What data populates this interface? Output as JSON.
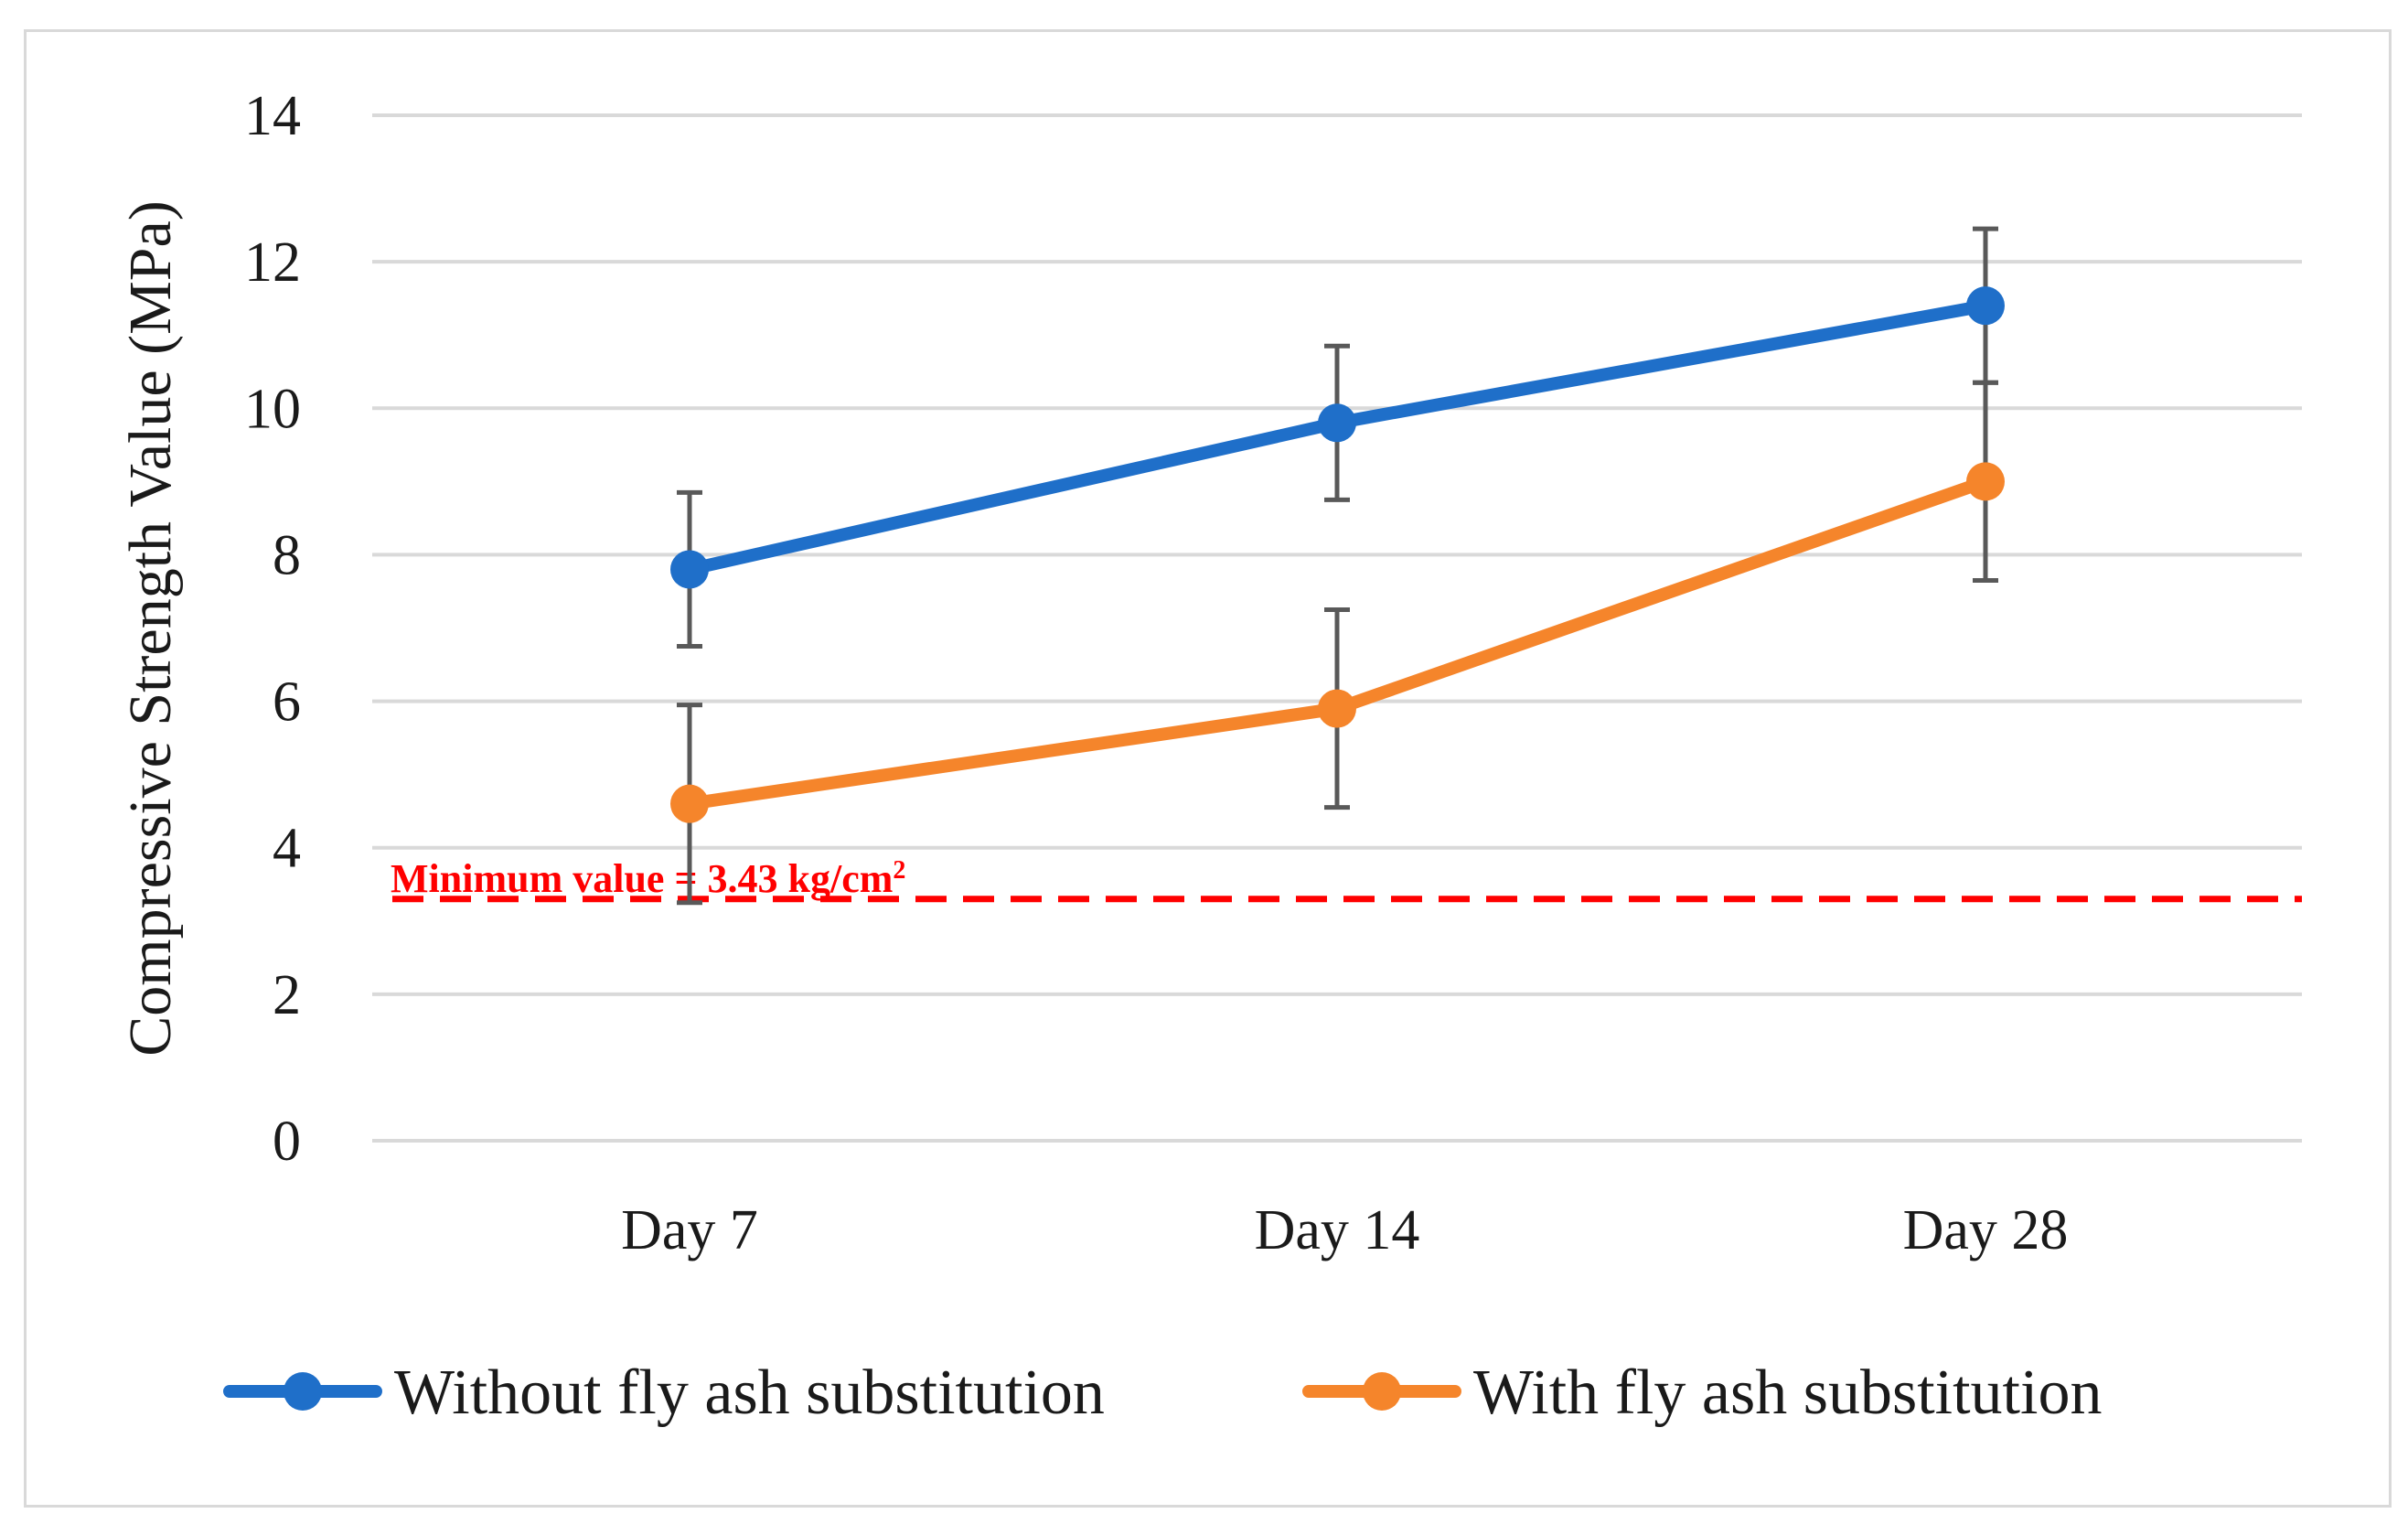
{
  "chart_data": {
    "type": "line",
    "title": "",
    "xlabel": "",
    "ylabel": "Compressive Strength Value (MPa)",
    "ylim": [
      0,
      14
    ],
    "yticks": [
      "0",
      "2",
      "4",
      "6",
      "8",
      "10",
      "12",
      "14"
    ],
    "categories": [
      "Day 7",
      "Day 14",
      "Day 28"
    ],
    "grid": true,
    "legend_position": "bottom",
    "series": [
      {
        "name": "Without fly ash substitution",
        "color": "#1f6fc9",
        "values": [
          7.8,
          9.8,
          11.4
        ],
        "error": [
          1.05,
          1.05,
          1.05
        ]
      },
      {
        "name": "With fly ash substitution",
        "color": "#f5852b",
        "values": [
          4.6,
          5.9,
          9.0
        ],
        "error": [
          1.35,
          1.35,
          1.35
        ]
      }
    ],
    "reference_line": {
      "value": 3.3,
      "color": "#ff0000",
      "label": "Minimum value = 3.43 kg/cm",
      "label_superscript": "2"
    },
    "colors": {
      "grid": "#d9d9d9",
      "error_bar": "#595959"
    }
  }
}
